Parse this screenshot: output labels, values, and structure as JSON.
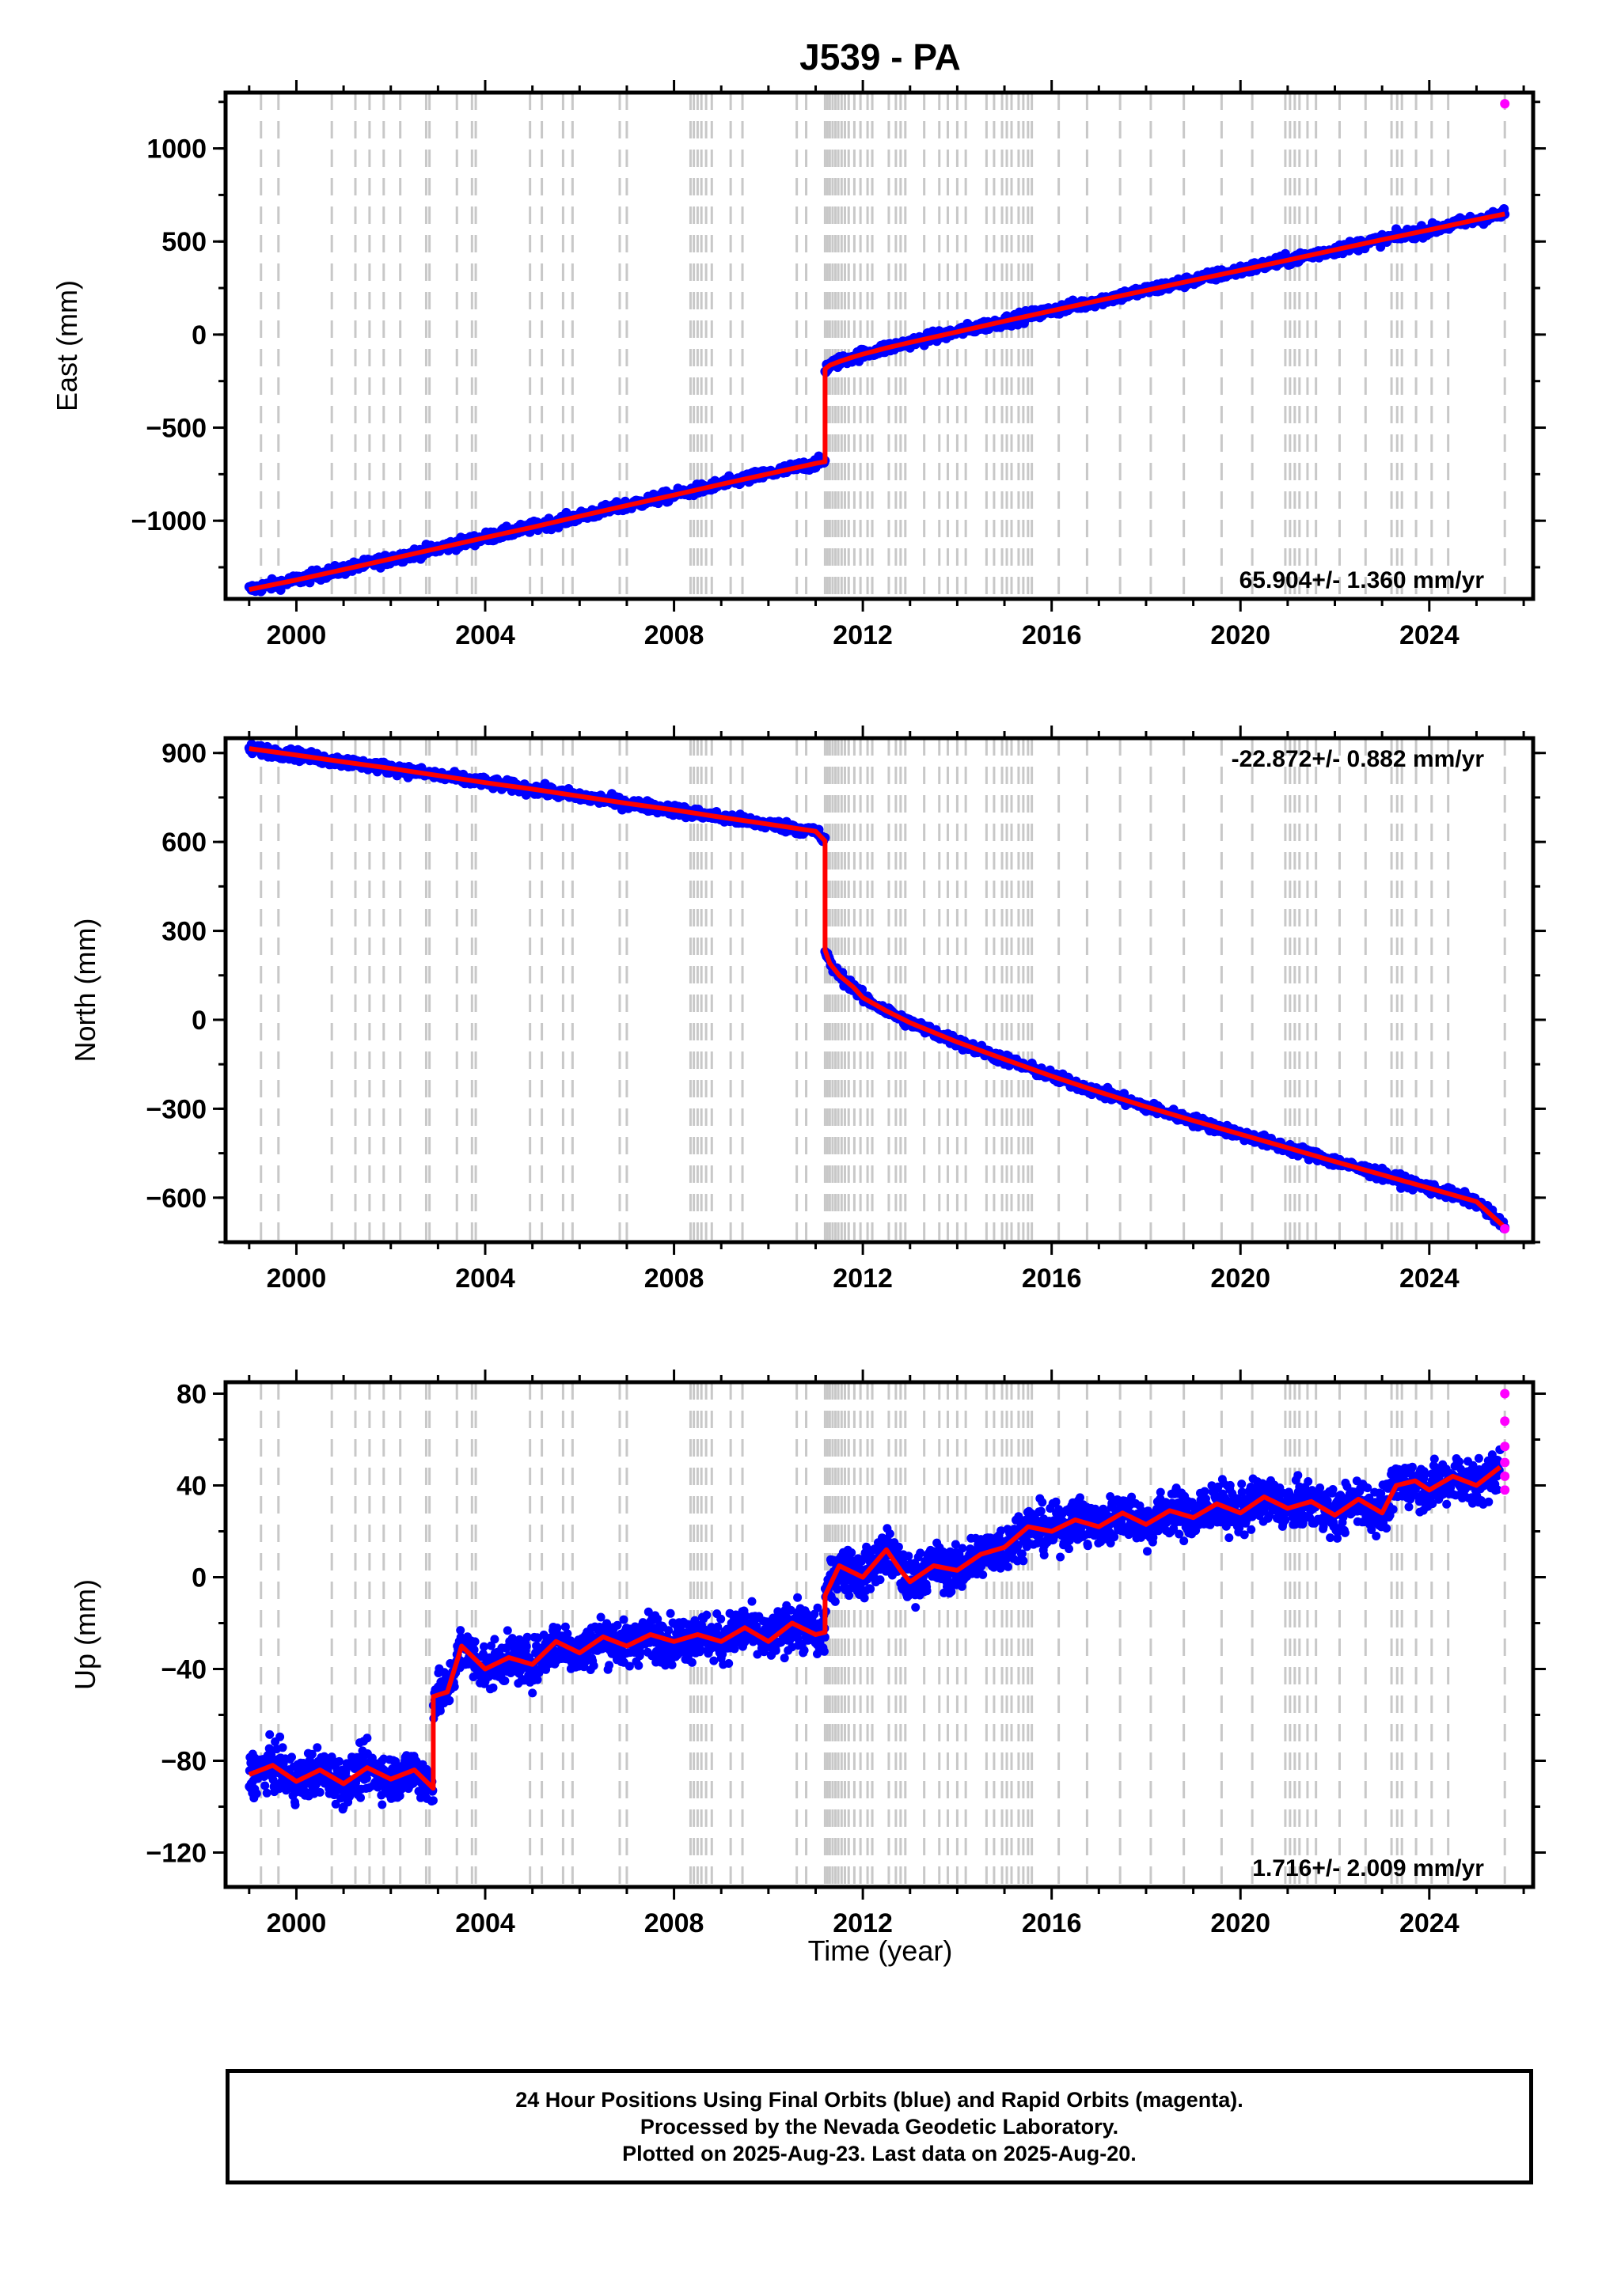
{
  "chart_data": {
    "title": "J539 - PA",
    "xlabel": "Time (year)",
    "x_ticks": [
      "2000",
      "2004",
      "2008",
      "2012",
      "2016",
      "2020",
      "2024"
    ],
    "xlim": [
      1998.5,
      2026.2
    ],
    "event_lines": [
      1999.25,
      1999.62,
      2000.75,
      2001.25,
      2001.55,
      2001.85,
      2002.2,
      2002.75,
      2002.82,
      2003.4,
      2003.72,
      2003.8,
      2004.95,
      2005.2,
      2005.65,
      2005.85,
      2006.85,
      2007.0,
      2008.35,
      2008.42,
      2008.5,
      2008.58,
      2008.68,
      2008.8,
      2009.2,
      2009.45,
      2010.6,
      2010.8,
      2011.2,
      2011.25,
      2011.3,
      2011.36,
      2011.42,
      2011.48,
      2011.55,
      2011.62,
      2011.7,
      2011.82,
      2011.95,
      2012.1,
      2012.2,
      2012.55,
      2012.7,
      2012.8,
      2012.9,
      2013.3,
      2013.62,
      2013.8,
      2014.0,
      2014.18,
      2014.62,
      2014.78,
      2014.95,
      2015.05,
      2015.15,
      2015.3,
      2015.4,
      2015.5,
      2015.58,
      2016.15,
      2016.75,
      2017.45,
      2018.1,
      2018.8,
      2019.6,
      2020.25,
      2020.95,
      2021.05,
      2021.15,
      2021.25,
      2021.42,
      2021.6,
      2022.1,
      2022.65,
      2023.2,
      2023.32,
      2023.42,
      2023.72,
      2024.05,
      2024.4,
      2025.6
    ],
    "panels": [
      {
        "type": "scatter",
        "ylabel": "East (mm)",
        "ylim": [
          -1420,
          1300
        ],
        "y_ticks": [
          1000,
          500,
          0,
          -500,
          -1000
        ],
        "y_tick_labels": [
          "1000",
          "500",
          "0",
          "−500",
          "−1000"
        ],
        "rate": "65.904+/- 1.360 mm/yr",
        "rate_position": "bottom-right",
        "series": [
          {
            "name": "Final Orbits",
            "color": "#0000ff",
            "x": [
              1999.0,
              2000.0,
              2001.0,
              2002.0,
              2003.0,
              2004.0,
              2005.0,
              2006.0,
              2007.0,
              2008.0,
              2009.0,
              2010.0,
              2011.0,
              2011.2
            ],
            "y": [
              -1370,
              -1318,
              -1262,
              -1205,
              -1148,
              -1090,
              -1035,
              -976,
              -918,
              -862,
              -804,
              -748,
              -692,
              -683
            ]
          },
          {
            "name": "Final Orbits",
            "color": "#0000ff",
            "x": [
              2011.2,
              2011.3,
              2011.5,
              2011.8,
              2012.0,
              2012.5,
              2013.0,
              2014.0,
              2015.0,
              2016.0,
              2017.0,
              2018.0,
              2019.0,
              2020.0,
              2021.0,
              2022.0,
              2023.0,
              2024.0,
              2025.0,
              2025.6
            ],
            "y": [
              -185,
              -165,
              -145,
              -120,
              -105,
              -72,
              -42,
              15,
              72,
              128,
              183,
              237,
              292,
              345,
              400,
              455,
              510,
              562,
              617,
              648
            ]
          }
        ],
        "rapid_orbits": {
          "name": "Rapid Orbits",
          "color": "#ff00ff",
          "x": [
            2025.6
          ],
          "y": [
            1240
          ]
        }
      },
      {
        "type": "scatter",
        "ylabel": "North (mm)",
        "ylim": [
          -750,
          950
        ],
        "y_ticks": [
          900,
          600,
          300,
          0,
          -300,
          -600
        ],
        "y_tick_labels": [
          "900",
          "600",
          "300",
          "0",
          "−300",
          "−600"
        ],
        "rate": "-22.872+/- 0.882 mm/yr",
        "rate_position": "top-right",
        "series": [
          {
            "name": "Final Orbits",
            "color": "#0000ff",
            "x": [
              1999.0,
              2000.0,
              2001.0,
              2002.0,
              2003.0,
              2004.0,
              2005.0,
              2006.0,
              2007.0,
              2008.0,
              2009.0,
              2010.0,
              2011.0,
              2011.2
            ],
            "y": [
              915,
              893,
              870,
              848,
              824,
              800,
              778,
              754,
              730,
              708,
              683,
              660,
              636,
              603
            ]
          },
          {
            "name": "Final Orbits",
            "color": "#0000ff",
            "x": [
              2011.2,
              2011.3,
              2011.5,
              2011.8,
              2012.0,
              2012.5,
              2013.0,
              2014.0,
              2015.0,
              2016.0,
              2017.0,
              2018.0,
              2019.0,
              2020.0,
              2021.0,
              2022.0,
              2023.0,
              2024.0,
              2025.0,
              2025.6
            ],
            "y": [
              235,
              190,
              150,
              110,
              75,
              30,
              -10,
              -75,
              -133,
              -190,
              -243,
              -293,
              -340,
              -386,
              -432,
              -478,
              -523,
              -568,
              -613,
              -700
            ]
          }
        ],
        "rapid_orbits": {
          "name": "Rapid Orbits",
          "color": "#ff00ff",
          "x": [
            2025.6
          ],
          "y": [
            -705
          ]
        }
      },
      {
        "type": "scatter",
        "ylabel": "Up (mm)",
        "ylim": [
          -135,
          85
        ],
        "y_ticks": [
          80,
          40,
          0,
          -40,
          -80,
          -120
        ],
        "y_tick_labels": [
          "80",
          "40",
          "0",
          "−40",
          "−80",
          "−120"
        ],
        "rate": "1.716+/- 2.009 mm/yr",
        "rate_position": "bottom-right",
        "series": [
          {
            "name": "Final Orbits",
            "color": "#0000ff",
            "x": [
              1999.0,
              1999.5,
              2000.0,
              2000.5,
              2001.0,
              2001.5,
              2002.0,
              2002.5,
              2002.9
            ],
            "y": [
              -86,
              -82,
              -89,
              -84,
              -90,
              -83,
              -88,
              -84,
              -92
            ]
          },
          {
            "name": "Final Orbits",
            "color": "#0000ff",
            "x": [
              2002.9,
              2003.2,
              2003.5,
              2004.0,
              2004.5,
              2005.0,
              2005.5,
              2006.0,
              2006.5,
              2007.0,
              2007.5,
              2008.0,
              2008.5,
              2009.0,
              2009.5,
              2010.0,
              2010.5,
              2011.0,
              2011.2
            ],
            "y": [
              -52,
              -50,
              -30,
              -40,
              -35,
              -38,
              -28,
              -33,
              -26,
              -30,
              -25,
              -28,
              -25,
              -28,
              -22,
              -28,
              -20,
              -25,
              -24
            ]
          },
          {
            "name": "Final Orbits",
            "color": "#0000ff",
            "x": [
              2011.2,
              2011.5,
              2012.0,
              2012.5,
              2012.8,
              2013.0,
              2013.5,
              2014.0,
              2014.5,
              2015.0,
              2015.5,
              2016.0,
              2016.5,
              2017.0,
              2017.5,
              2018.0,
              2018.5,
              2019.0,
              2019.5,
              2020.0,
              2020.5,
              2021.0,
              2021.5,
              2022.0,
              2022.5,
              2023.0,
              2023.3,
              2023.7,
              2024.0,
              2024.5,
              2025.0,
              2025.5
            ],
            "y": [
              -8,
              5,
              0,
              12,
              3,
              -2,
              5,
              3,
              10,
              13,
              22,
              20,
              25,
              22,
              28,
              23,
              29,
              26,
              32,
              28,
              35,
              30,
              33,
              27,
              34,
              28,
              40,
              42,
              38,
              44,
              40,
              48
            ]
          }
        ],
        "rapid_orbits": {
          "name": "Rapid Orbits",
          "color": "#ff00ff",
          "x": [
            2025.6,
            2025.6,
            2025.6,
            2025.6,
            2025.6,
            2025.6
          ],
          "y": [
            80,
            68,
            57,
            50,
            44,
            38
          ]
        }
      }
    ]
  },
  "caption": {
    "line1": "24 Hour Positions Using Final Orbits (blue) and Rapid Orbits (magenta).",
    "line2": "Processed by the Nevada Geodetic Laboratory.",
    "line3": "Plotted on 2025-Aug-23. Last data on 2025-Aug-20."
  }
}
